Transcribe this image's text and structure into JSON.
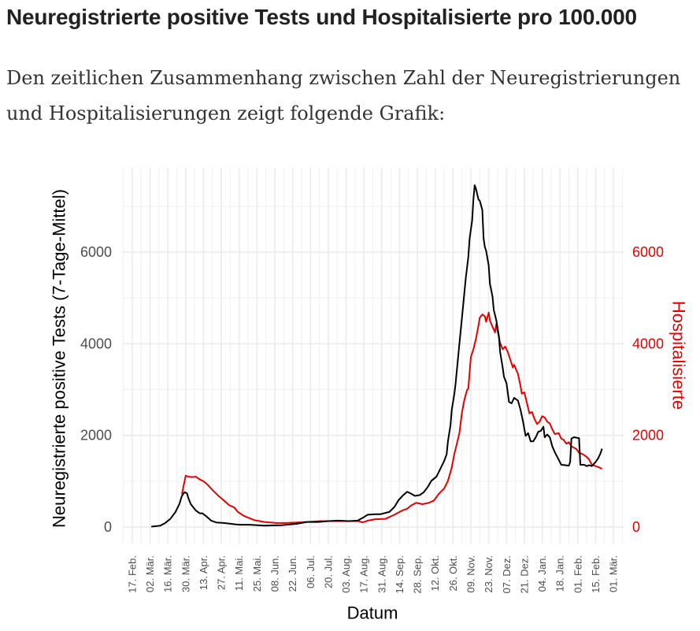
{
  "page": {
    "heading": "Neuregistrierte positive Tests und Hospitalisierte pro 100.000",
    "intro_lines": [
      "Den zeitlichen Zusammenhang zwischen Zahl der Neuregistrierungen",
      "und Hospitalisierungen zeigt folgende Grafik:"
    ]
  },
  "chart_data": {
    "type": "line",
    "xlabel": "Datum",
    "xlim": [
      "2020-02-09",
      "2021-03-09"
    ],
    "ylim": [
      -360,
      7840
    ],
    "grid": true,
    "x_ticks": [
      {
        "date": "2020-02-17",
        "label": "17. Feb."
      },
      {
        "date": "2020-03-02",
        "label": "02. Mär."
      },
      {
        "date": "2020-03-16",
        "label": "16. Mär."
      },
      {
        "date": "2020-03-30",
        "label": "30. Mär."
      },
      {
        "date": "2020-04-13",
        "label": "13. Apr."
      },
      {
        "date": "2020-04-27",
        "label": "27. Apr."
      },
      {
        "date": "2020-05-11",
        "label": "11. Mai."
      },
      {
        "date": "2020-05-25",
        "label": "25. Mai."
      },
      {
        "date": "2020-06-08",
        "label": "08. Jun."
      },
      {
        "date": "2020-06-22",
        "label": "22. Jun."
      },
      {
        "date": "2020-07-06",
        "label": "06. Jul."
      },
      {
        "date": "2020-07-20",
        "label": "20. Jul."
      },
      {
        "date": "2020-08-03",
        "label": "03. Aug."
      },
      {
        "date": "2020-08-17",
        "label": "17. Aug."
      },
      {
        "date": "2020-08-31",
        "label": "31. Aug."
      },
      {
        "date": "2020-09-14",
        "label": "14. Sep."
      },
      {
        "date": "2020-09-28",
        "label": "28. Sep."
      },
      {
        "date": "2020-10-12",
        "label": "12. Okt."
      },
      {
        "date": "2020-10-26",
        "label": "26. Okt."
      },
      {
        "date": "2020-11-09",
        "label": "09. Nov."
      },
      {
        "date": "2020-11-23",
        "label": "23. Nov."
      },
      {
        "date": "2020-12-07",
        "label": "07. Dez."
      },
      {
        "date": "2020-12-21",
        "label": "21. Dez."
      },
      {
        "date": "2021-01-04",
        "label": "04. Jan."
      },
      {
        "date": "2021-01-18",
        "label": "18. Jan."
      },
      {
        "date": "2021-02-01",
        "label": "01. Feb."
      },
      {
        "date": "2021-02-15",
        "label": "15. Feb."
      },
      {
        "date": "2021-03-01",
        "label": "01. Mär."
      }
    ],
    "y_ticks": [
      0,
      2000,
      4000,
      6000
    ],
    "y_ticks_right": [
      0,
      2000,
      4000,
      6000
    ],
    "axis_color_right": "#e60000",
    "series": [
      {
        "name": "Neuregistrierte positive Tests (7-Tage-Mittel)",
        "color": "#000000",
        "points": [
          [
            "2020-03-03",
            10
          ],
          [
            "2020-03-10",
            30
          ],
          [
            "2020-03-14",
            90
          ],
          [
            "2020-03-18",
            180
          ],
          [
            "2020-03-22",
            330
          ],
          [
            "2020-03-25",
            500
          ],
          [
            "2020-03-27",
            680
          ],
          [
            "2020-03-29",
            760
          ],
          [
            "2020-03-31",
            740
          ],
          [
            "2020-04-01",
            640
          ],
          [
            "2020-04-03",
            500
          ],
          [
            "2020-04-07",
            360
          ],
          [
            "2020-04-10",
            300
          ],
          [
            "2020-04-12",
            300
          ],
          [
            "2020-04-15",
            240
          ],
          [
            "2020-04-19",
            140
          ],
          [
            "2020-04-23",
            100
          ],
          [
            "2020-04-29",
            90
          ],
          [
            "2020-05-08",
            60
          ],
          [
            "2020-05-12",
            50
          ],
          [
            "2020-05-19",
            50
          ],
          [
            "2020-05-31",
            30
          ],
          [
            "2020-06-13",
            40
          ],
          [
            "2020-06-25",
            70
          ],
          [
            "2020-07-03",
            110
          ],
          [
            "2020-07-12",
            110
          ],
          [
            "2020-07-20",
            130
          ],
          [
            "2020-07-28",
            140
          ],
          [
            "2020-08-05",
            130
          ],
          [
            "2020-08-12",
            140
          ],
          [
            "2020-08-16",
            200
          ],
          [
            "2020-08-20",
            270
          ],
          [
            "2020-08-26",
            280
          ],
          [
            "2020-08-30",
            280
          ],
          [
            "2020-09-03",
            310
          ],
          [
            "2020-09-06",
            330
          ],
          [
            "2020-09-10",
            440
          ],
          [
            "2020-09-13",
            580
          ],
          [
            "2020-09-17",
            700
          ],
          [
            "2020-09-20",
            770
          ],
          [
            "2020-09-23",
            730
          ],
          [
            "2020-09-26",
            680
          ],
          [
            "2020-09-30",
            700
          ],
          [
            "2020-10-03",
            760
          ],
          [
            "2020-10-06",
            870
          ],
          [
            "2020-10-09",
            1010
          ],
          [
            "2020-10-13",
            1100
          ],
          [
            "2020-10-16",
            1270
          ],
          [
            "2020-10-19",
            1440
          ],
          [
            "2020-10-21",
            1590
          ],
          [
            "2020-10-22",
            1870
          ],
          [
            "2020-10-24",
            2220
          ],
          [
            "2020-10-25",
            2560
          ],
          [
            "2020-10-27",
            2900
          ],
          [
            "2020-10-28",
            3130
          ],
          [
            "2020-10-31",
            4000
          ],
          [
            "2020-11-03",
            4850
          ],
          [
            "2020-11-05",
            5430
          ],
          [
            "2020-11-07",
            5890
          ],
          [
            "2020-11-08",
            6290
          ],
          [
            "2020-11-10",
            6690
          ],
          [
            "2020-11-11",
            7150
          ],
          [
            "2020-11-12",
            7460
          ],
          [
            "2020-11-13",
            7380
          ],
          [
            "2020-11-15",
            7150
          ],
          [
            "2020-11-16",
            7120
          ],
          [
            "2020-11-18",
            6920
          ],
          [
            "2020-11-19",
            6300
          ],
          [
            "2020-11-20",
            6110
          ],
          [
            "2020-11-21",
            6030
          ],
          [
            "2020-11-23",
            5710
          ],
          [
            "2020-11-24",
            5310
          ],
          [
            "2020-11-26",
            5030
          ],
          [
            "2020-11-27",
            4740
          ],
          [
            "2020-11-29",
            4510
          ],
          [
            "2020-12-01",
            4170
          ],
          [
            "2020-12-02",
            3820
          ],
          [
            "2020-12-04",
            3480
          ],
          [
            "2020-12-05",
            3280
          ],
          [
            "2020-12-07",
            3140
          ],
          [
            "2020-12-09",
            2730
          ],
          [
            "2020-12-11",
            2700
          ],
          [
            "2020-12-13",
            2820
          ],
          [
            "2020-12-16",
            2760
          ],
          [
            "2020-12-18",
            2560
          ],
          [
            "2020-12-20",
            2300
          ],
          [
            "2020-12-22",
            1990
          ],
          [
            "2020-12-24",
            2050
          ],
          [
            "2020-12-26",
            1870
          ],
          [
            "2020-12-28",
            1870
          ],
          [
            "2020-12-30",
            1960
          ],
          [
            "2021-01-01",
            2080
          ],
          [
            "2021-01-03",
            2100
          ],
          [
            "2021-01-05",
            2190
          ],
          [
            "2021-01-06",
            1960
          ],
          [
            "2021-01-08",
            2020
          ],
          [
            "2021-01-10",
            1960
          ],
          [
            "2021-01-12",
            1760
          ],
          [
            "2021-01-14",
            1630
          ],
          [
            "2021-01-17",
            1470
          ],
          [
            "2021-01-19",
            1360
          ],
          [
            "2021-01-22",
            1350
          ],
          [
            "2021-01-25",
            1340
          ],
          [
            "2021-01-26",
            1420
          ],
          [
            "2021-01-27",
            1930
          ],
          [
            "2021-01-29",
            1960
          ],
          [
            "2021-01-31",
            1950
          ],
          [
            "2021-02-02",
            1940
          ],
          [
            "2021-02-03",
            1360
          ],
          [
            "2021-02-06",
            1360
          ],
          [
            "2021-02-08",
            1330
          ],
          [
            "2021-02-10",
            1350
          ],
          [
            "2021-02-12",
            1330
          ],
          [
            "2021-02-15",
            1420
          ],
          [
            "2021-02-17",
            1500
          ],
          [
            "2021-02-19",
            1620
          ],
          [
            "2021-02-20",
            1710
          ]
        ]
      },
      {
        "name": "Hospitalisierte",
        "color": "#e60000",
        "points": [
          [
            "2020-03-27",
            720
          ],
          [
            "2020-03-30",
            1120
          ],
          [
            "2020-04-01",
            1100
          ],
          [
            "2020-04-04",
            1090
          ],
          [
            "2020-04-07",
            1100
          ],
          [
            "2020-04-10",
            1040
          ],
          [
            "2020-04-13",
            1000
          ],
          [
            "2020-04-16",
            930
          ],
          [
            "2020-04-20",
            810
          ],
          [
            "2020-04-24",
            700
          ],
          [
            "2020-04-29",
            580
          ],
          [
            "2020-05-03",
            480
          ],
          [
            "2020-05-07",
            430
          ],
          [
            "2020-05-10",
            330
          ],
          [
            "2020-05-15",
            240
          ],
          [
            "2020-05-23",
            150
          ],
          [
            "2020-05-31",
            110
          ],
          [
            "2020-06-09",
            90
          ],
          [
            "2020-06-17",
            90
          ],
          [
            "2020-06-25",
            100
          ],
          [
            "2020-07-03",
            110
          ],
          [
            "2020-07-14",
            130
          ],
          [
            "2020-07-24",
            130
          ],
          [
            "2020-08-03",
            130
          ],
          [
            "2020-08-13",
            130
          ],
          [
            "2020-08-16",
            100
          ],
          [
            "2020-08-20",
            140
          ],
          [
            "2020-08-26",
            170
          ],
          [
            "2020-09-03",
            180
          ],
          [
            "2020-09-10",
            270
          ],
          [
            "2020-09-16",
            360
          ],
          [
            "2020-09-20",
            400
          ],
          [
            "2020-09-23",
            470
          ],
          [
            "2020-09-27",
            530
          ],
          [
            "2020-10-02",
            500
          ],
          [
            "2020-10-07",
            530
          ],
          [
            "2020-10-11",
            580
          ],
          [
            "2020-10-15",
            730
          ],
          [
            "2020-10-19",
            840
          ],
          [
            "2020-10-22",
            1010
          ],
          [
            "2020-10-25",
            1300
          ],
          [
            "2020-10-27",
            1590
          ],
          [
            "2020-10-29",
            1820
          ],
          [
            "2020-10-31",
            2050
          ],
          [
            "2020-11-02",
            2500
          ],
          [
            "2020-11-04",
            2790
          ],
          [
            "2020-11-06",
            2990
          ],
          [
            "2020-11-07",
            3020
          ],
          [
            "2020-11-08",
            3370
          ],
          [
            "2020-11-09",
            3710
          ],
          [
            "2020-11-11",
            3880
          ],
          [
            "2020-11-13",
            4110
          ],
          [
            "2020-11-15",
            4400
          ],
          [
            "2020-11-16",
            4570
          ],
          [
            "2020-11-18",
            4640
          ],
          [
            "2020-11-20",
            4600
          ],
          [
            "2020-11-21",
            4480
          ],
          [
            "2020-11-23",
            4680
          ],
          [
            "2020-11-24",
            4510
          ],
          [
            "2020-11-26",
            4370
          ],
          [
            "2020-11-28",
            4250
          ],
          [
            "2020-11-29",
            4430
          ],
          [
            "2020-11-30",
            4280
          ],
          [
            "2020-12-02",
            4020
          ],
          [
            "2020-12-04",
            3880
          ],
          [
            "2020-12-06",
            3940
          ],
          [
            "2020-12-08",
            3820
          ],
          [
            "2020-12-10",
            3650
          ],
          [
            "2020-12-12",
            3480
          ],
          [
            "2020-12-13",
            3540
          ],
          [
            "2020-12-16",
            3340
          ],
          [
            "2020-12-18",
            3080
          ],
          [
            "2020-12-19",
            2910
          ],
          [
            "2020-12-21",
            2940
          ],
          [
            "2020-12-23",
            2710
          ],
          [
            "2020-12-25",
            2480
          ],
          [
            "2020-12-27",
            2510
          ],
          [
            "2020-12-29",
            2360
          ],
          [
            "2020-12-31",
            2250
          ],
          [
            "2021-01-02",
            2300
          ],
          [
            "2021-01-04",
            2420
          ],
          [
            "2021-01-06",
            2390
          ],
          [
            "2021-01-08",
            2300
          ],
          [
            "2021-01-10",
            2260
          ],
          [
            "2021-01-12",
            2130
          ],
          [
            "2021-01-14",
            2030
          ],
          [
            "2021-01-17",
            2050
          ],
          [
            "2021-01-19",
            1930
          ],
          [
            "2021-01-21",
            1900
          ],
          [
            "2021-01-23",
            1820
          ],
          [
            "2021-01-25",
            1850
          ],
          [
            "2021-01-27",
            1760
          ],
          [
            "2021-01-29",
            1730
          ],
          [
            "2021-01-31",
            1700
          ],
          [
            "2021-02-02",
            1620
          ],
          [
            "2021-02-05",
            1590
          ],
          [
            "2021-02-08",
            1530
          ],
          [
            "2021-02-10",
            1470
          ],
          [
            "2021-02-12",
            1360
          ],
          [
            "2021-02-15",
            1330
          ],
          [
            "2021-02-18",
            1300
          ],
          [
            "2021-02-20",
            1270
          ]
        ]
      }
    ]
  }
}
